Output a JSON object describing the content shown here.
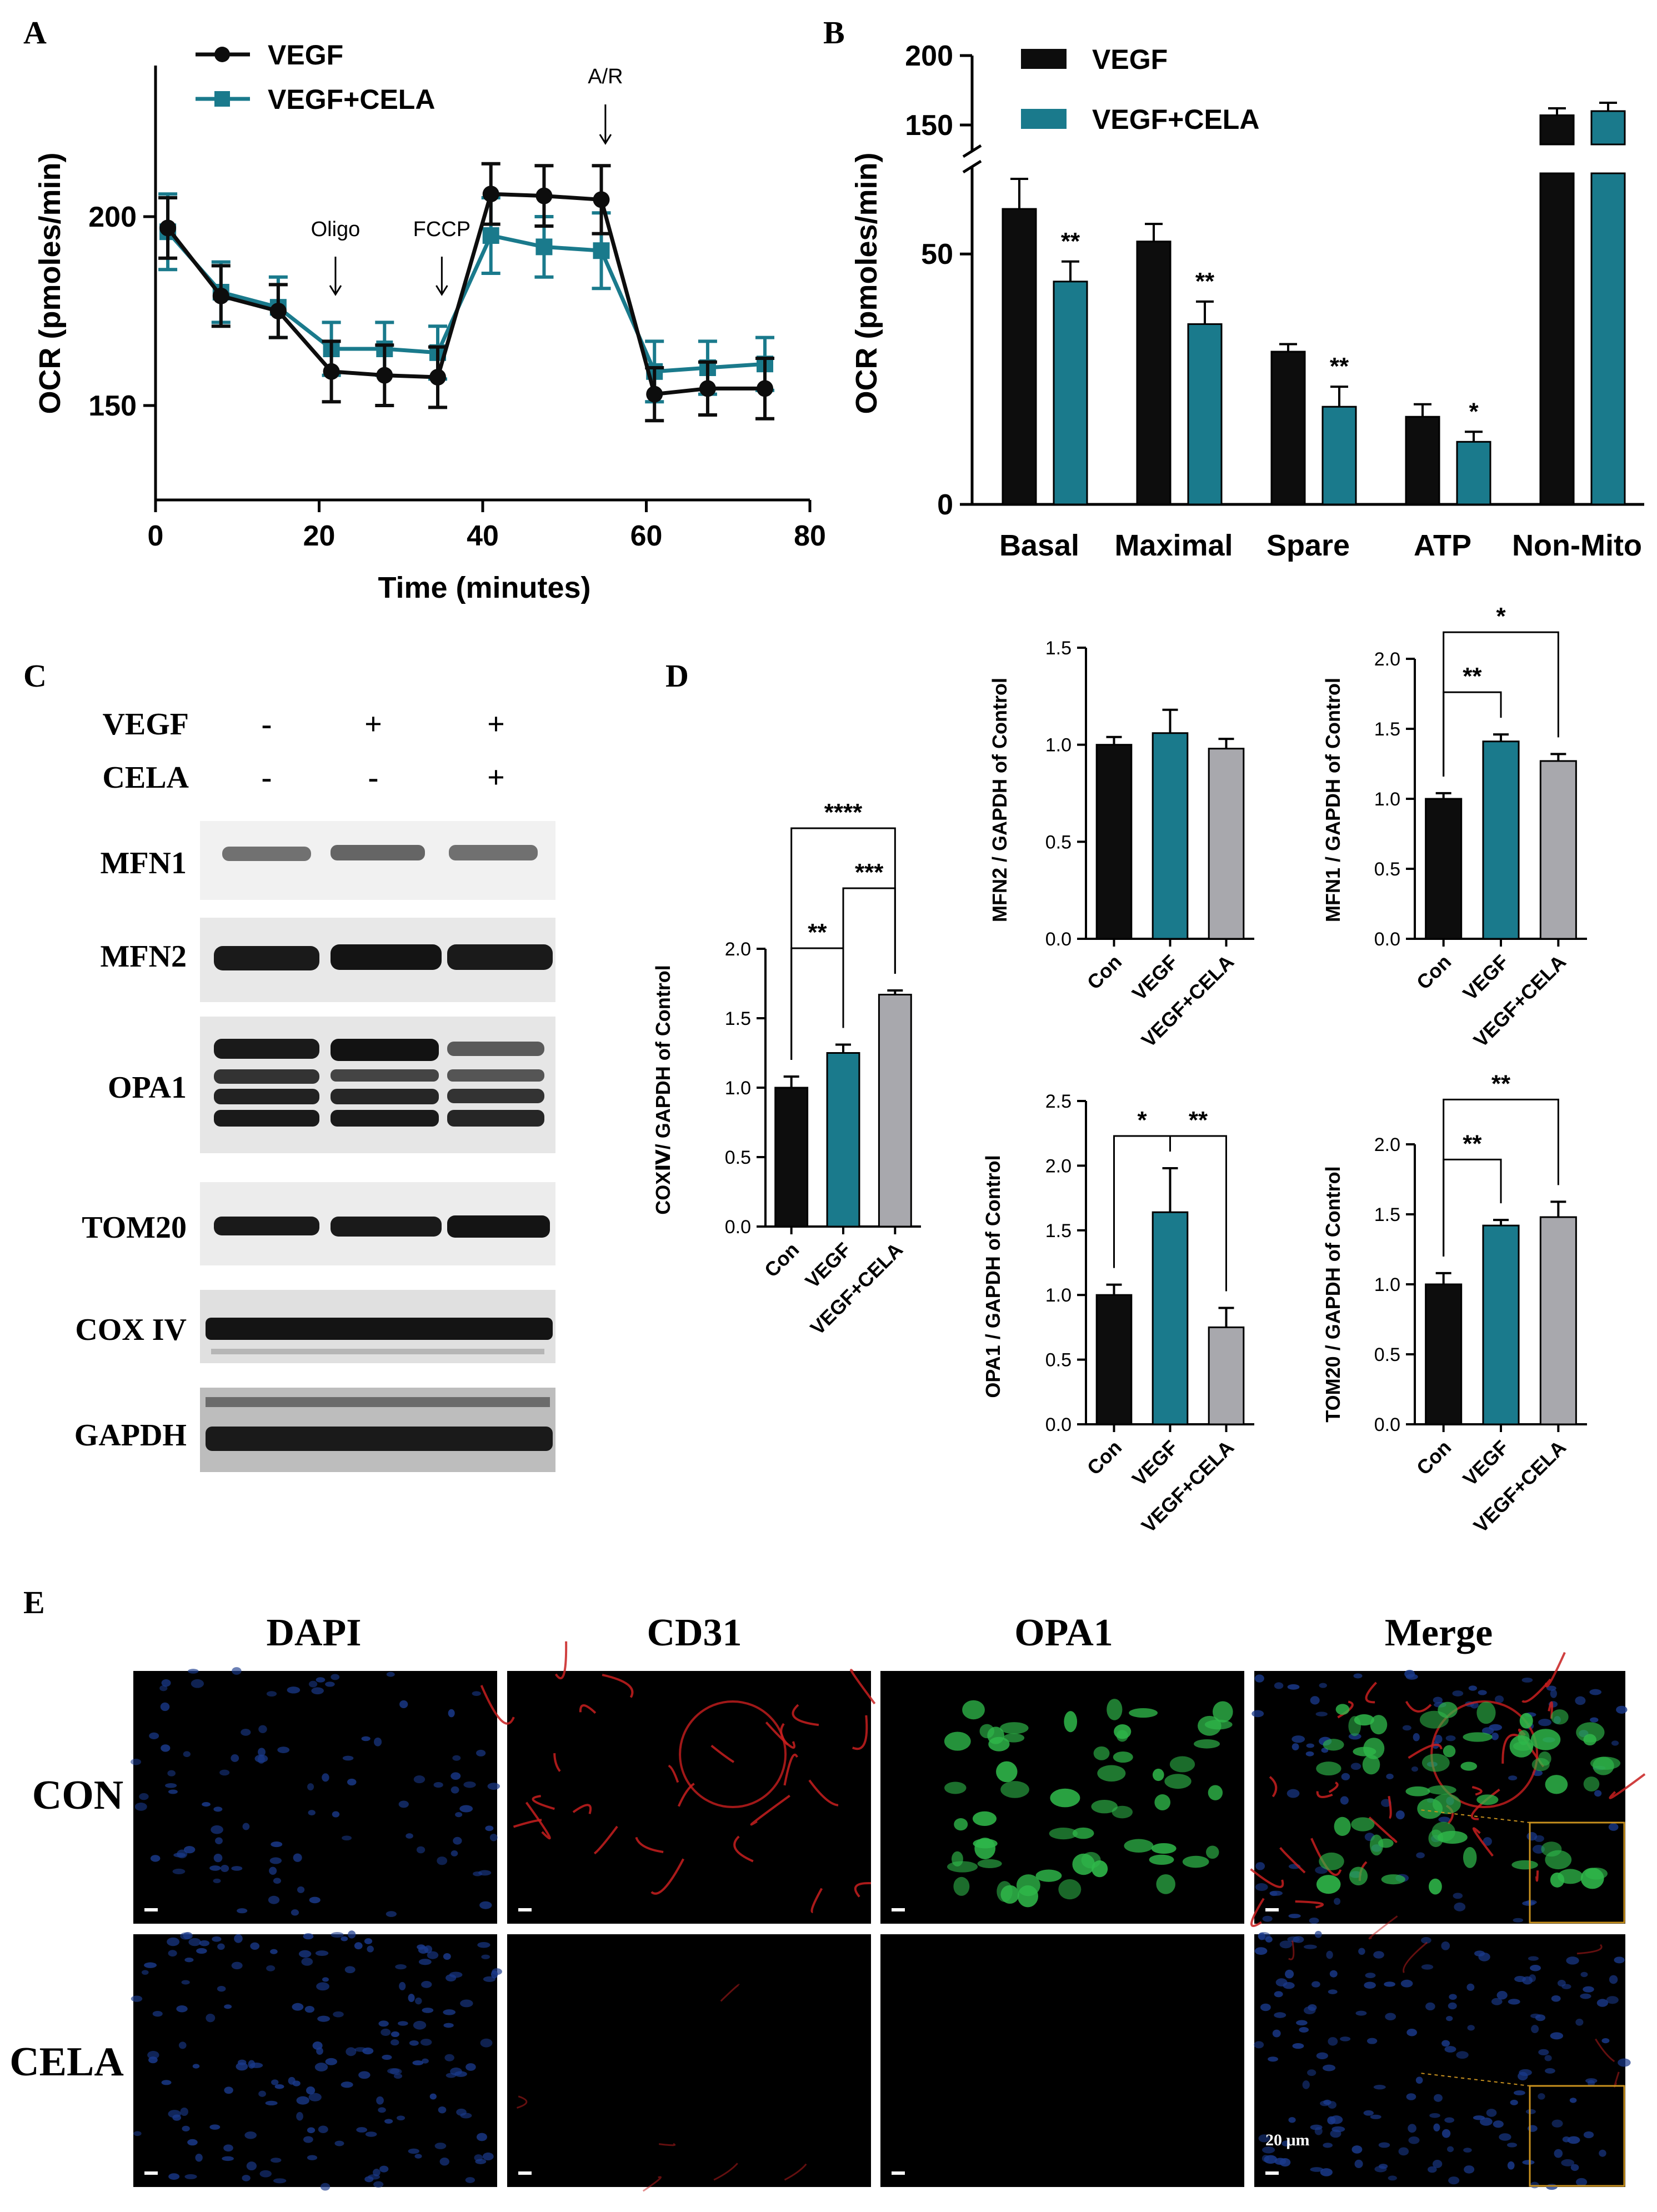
{
  "colors": {
    "vegf": "#0d0d0d",
    "cela": "#1a7a8c",
    "gray": "#a8a8ad",
    "dapi": "#1a3a8c",
    "cd31": "#c81e1e",
    "opa1": "#2fb84a",
    "scale": "#ffffff"
  },
  "panels": {
    "A": "A",
    "B": "B",
    "C": "C",
    "D": "D",
    "E": "E"
  },
  "chart_data": [
    {
      "id": "A",
      "type": "line",
      "xlabel": "Time (minutes)",
      "ylabel": "OCR (pmoles/min)",
      "xlim": [
        0,
        80
      ],
      "ylim": [
        125,
        240
      ],
      "xticks": [
        0,
        20,
        40,
        60,
        80
      ],
      "yticks": [
        150,
        200
      ],
      "annotations": [
        {
          "text": "Oligo",
          "x": 22
        },
        {
          "text": "FCCP",
          "x": 35
        },
        {
          "text": "A/R",
          "x": 55
        }
      ],
      "series": [
        {
          "name": "VEGF",
          "marker": "circle",
          "x": [
            1.5,
            8,
            15,
            21.5,
            28,
            34.5,
            41,
            47.5,
            54.5,
            61,
            67.5,
            74.5
          ],
          "y": [
            197,
            179,
            175,
            159,
            158,
            157.5,
            206,
            205.5,
            204.5,
            153,
            154.5,
            154.5
          ],
          "err": [
            8,
            8,
            7,
            8,
            8,
            8,
            8,
            8,
            9,
            7,
            7,
            8
          ]
        },
        {
          "name": "VEGF+CELA",
          "marker": "square",
          "x": [
            1.5,
            8,
            15,
            21.5,
            28,
            34.5,
            41,
            47.5,
            54.5,
            61,
            67.5,
            74.5
          ],
          "y": [
            196,
            180,
            176,
            165,
            165,
            164,
            195,
            192,
            191,
            159,
            160,
            161
          ],
          "err": [
            10,
            8,
            8,
            7,
            7,
            7,
            10,
            8,
            10,
            8,
            7,
            7
          ]
        }
      ]
    },
    {
      "id": "B",
      "type": "bar",
      "ylabel": "OCR (pmoles/min)",
      "categories": [
        "Basal",
        "Maximal",
        "Spare",
        "ATP",
        "Non-Mito"
      ],
      "yticks_low": [
        0,
        50
      ],
      "yticks_high": [
        150,
        200
      ],
      "ylim_low": [
        0,
        65
      ],
      "ylim_high": [
        140,
        200
      ],
      "series": [
        {
          "name": "VEGF",
          "values": [
            59,
            52.5,
            30.5,
            17.5,
            157
          ],
          "err": [
            6,
            3.5,
            1.5,
            2.5,
            5
          ]
        },
        {
          "name": "VEGF+CELA",
          "values": [
            44.5,
            36,
            19.5,
            12.5,
            160
          ],
          "err": [
            4,
            4.5,
            4,
            2,
            6
          ]
        }
      ],
      "sig": [
        "**",
        "**",
        "**",
        "*",
        ""
      ]
    },
    {
      "id": "D-COX",
      "type": "bar",
      "ylabel": "COXⅣ/ GAPDH of Control",
      "categories": [
        "Con",
        "VEGF",
        "VEGF+CELA"
      ],
      "values": [
        1.0,
        1.25,
        1.67
      ],
      "err": [
        0.08,
        0.06,
        0.03
      ],
      "ylim": [
        0,
        2.0
      ],
      "yticks": [
        "0.0",
        "0.5",
        "1.0",
        "1.5",
        "2.0"
      ],
      "brackets": [
        {
          "from": 0,
          "to": 1,
          "label": "**",
          "level": 0
        },
        {
          "from": 1,
          "to": 2,
          "label": "***",
          "level": 1
        },
        {
          "from": 0,
          "to": 2,
          "label": "****",
          "level": 2
        }
      ]
    },
    {
      "id": "D-MFN2",
      "type": "bar",
      "ylabel": "MFN2 / GAPDH of Control",
      "categories": [
        "Con",
        "VEGF",
        "VEGF+CELA"
      ],
      "values": [
        1.0,
        1.06,
        0.98
      ],
      "err": [
        0.04,
        0.12,
        0.05
      ],
      "ylim": [
        0,
        1.5
      ],
      "yticks": [
        "0.0",
        "0.5",
        "1.0",
        "1.5"
      ],
      "brackets": []
    },
    {
      "id": "D-MFN1",
      "type": "bar",
      "ylabel": "MFN1 / GAPDH of Control",
      "categories": [
        "Con",
        "VEGF",
        "VEGF+CELA"
      ],
      "values": [
        1.0,
        1.41,
        1.27
      ],
      "err": [
        0.04,
        0.05,
        0.05
      ],
      "ylim": [
        0,
        2.0
      ],
      "yticks": [
        "0.0",
        "0.5",
        "1.0",
        "1.5",
        "2.0"
      ],
      "brackets": [
        {
          "from": 0,
          "to": 1,
          "label": "**",
          "level": 0
        },
        {
          "from": 0,
          "to": 2,
          "label": "*",
          "level": 1
        }
      ]
    },
    {
      "id": "D-OPA1",
      "type": "bar",
      "ylabel": "OPA1 / GAPDH of Control",
      "categories": [
        "Con",
        "VEGF",
        "VEGF+CELA"
      ],
      "values": [
        1.0,
        1.64,
        0.75
      ],
      "err": [
        0.08,
        0.34,
        0.15
      ],
      "ylim": [
        0,
        2.5
      ],
      "yticks": [
        "0.0",
        "0.5",
        "1.0",
        "1.5",
        "2.0",
        "2.5"
      ],
      "brackets": [
        {
          "from": 0,
          "to": 1,
          "label": "*",
          "level": 0
        },
        {
          "from": 1,
          "to": 2,
          "label": "**",
          "level": 0
        }
      ]
    },
    {
      "id": "D-TOM20",
      "type": "bar",
      "ylabel": "TOM20 / GAPDH of Control",
      "categories": [
        "Con",
        "VEGF",
        "VEGF+CELA"
      ],
      "values": [
        1.0,
        1.42,
        1.48
      ],
      "err": [
        0.08,
        0.04,
        0.11
      ],
      "ylim": [
        0,
        2.0
      ],
      "yticks": [
        "0.0",
        "0.5",
        "1.0",
        "1.5",
        "2.0"
      ],
      "brackets": [
        {
          "from": 0,
          "to": 1,
          "label": "**",
          "level": 0
        },
        {
          "from": 0,
          "to": 2,
          "label": "**",
          "level": 1
        }
      ]
    }
  ],
  "westernBlot": {
    "treatments": [
      {
        "label": "VEGF",
        "marks": [
          "-",
          "+",
          "+"
        ]
      },
      {
        "label": "CELA",
        "marks": [
          "-",
          "-",
          "+"
        ]
      }
    ],
    "proteins": [
      "MFN1",
      "MFN2",
      "OPA1",
      "TOM20",
      "COX IV",
      "GAPDH"
    ]
  },
  "microscopy": {
    "columns": [
      "DAPI",
      "CD31",
      "OPA1",
      "Merge"
    ],
    "rows": [
      "CON",
      "CELA"
    ],
    "scale_bar": "20 μm"
  }
}
